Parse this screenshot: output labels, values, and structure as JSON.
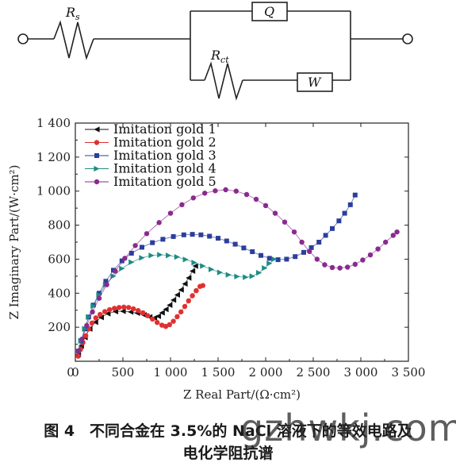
{
  "circuit": {
    "rs_label": "R",
    "rs_sub": "s",
    "q_label": "Q",
    "rct_label": "R",
    "rct_sub": "ct",
    "w_label": "W"
  },
  "chart_data": {
    "type": "scatter",
    "xlabel": "Z Real Part/(Ω·cm²)",
    "ylabel": "Z Imaginary Part/(W·cm²)",
    "xlim": [
      0,
      3500
    ],
    "ylim": [
      0,
      1400
    ],
    "xticks": [
      0,
      500,
      1000,
      1500,
      2000,
      2500,
      3000,
      3500
    ],
    "xtick_labels": [
      "0",
      "500",
      "1 000",
      "1 500",
      "2 000",
      "2 500",
      "3 000",
      "3 500"
    ],
    "yticks": [
      200,
      400,
      600,
      800,
      1000,
      1200,
      1400
    ],
    "ytick_labels": [
      "200",
      "400",
      "600",
      "800",
      "1 000",
      "1 200",
      "1 400"
    ],
    "x_origin_label": "0",
    "grid": false,
    "legend_position": "top-left",
    "series": [
      {
        "name": "Imitation gold 1",
        "marker": "triangle-left",
        "color": "#111111",
        "points": [
          [
            30,
            40
          ],
          [
            60,
            90
          ],
          [
            100,
            140
          ],
          [
            150,
            190
          ],
          [
            210,
            230
          ],
          [
            270,
            258
          ],
          [
            340,
            280
          ],
          [
            420,
            292
          ],
          [
            500,
            294
          ],
          [
            580,
            290
          ],
          [
            650,
            283
          ],
          [
            720,
            272
          ],
          [
            780,
            260
          ],
          [
            830,
            255
          ],
          [
            870,
            265
          ],
          [
            910,
            285
          ],
          [
            950,
            305
          ],
          [
            990,
            330
          ],
          [
            1030,
            360
          ],
          [
            1070,
            390
          ],
          [
            1110,
            420
          ],
          [
            1150,
            455
          ],
          [
            1190,
            490
          ],
          [
            1230,
            530
          ],
          [
            1260,
            560
          ]
        ]
      },
      {
        "name": "Imitation gold 2",
        "marker": "circle",
        "color": "#e03030",
        "points": [
          [
            30,
            30
          ],
          [
            55,
            70
          ],
          [
            80,
            110
          ],
          [
            110,
            150
          ],
          [
            140,
            190
          ],
          [
            175,
            225
          ],
          [
            215,
            255
          ],
          [
            260,
            275
          ],
          [
            310,
            292
          ],
          [
            360,
            303
          ],
          [
            410,
            311
          ],
          [
            460,
            316
          ],
          [
            510,
            318
          ],
          [
            560,
            316
          ],
          [
            610,
            308
          ],
          [
            660,
            298
          ],
          [
            710,
            285
          ],
          [
            760,
            268
          ],
          [
            810,
            248
          ],
          [
            860,
            228
          ],
          [
            910,
            212
          ],
          [
            950,
            205
          ],
          [
            990,
            215
          ],
          [
            1030,
            235
          ],
          [
            1070,
            262
          ],
          [
            1110,
            290
          ],
          [
            1150,
            322
          ],
          [
            1190,
            355
          ],
          [
            1230,
            385
          ],
          [
            1270,
            415
          ],
          [
            1310,
            440
          ],
          [
            1340,
            445
          ]
        ]
      },
      {
        "name": "Imitation gold 3",
        "marker": "square",
        "color": "#2c3e9c",
        "points": [
          [
            30,
            60
          ],
          [
            60,
            120
          ],
          [
            100,
            190
          ],
          [
            140,
            260
          ],
          [
            190,
            330
          ],
          [
            250,
            400
          ],
          [
            320,
            470
          ],
          [
            400,
            535
          ],
          [
            490,
            590
          ],
          [
            590,
            635
          ],
          [
            700,
            670
          ],
          [
            810,
            697
          ],
          [
            920,
            717
          ],
          [
            1030,
            733
          ],
          [
            1140,
            743
          ],
          [
            1230,
            746
          ],
          [
            1320,
            743
          ],
          [
            1410,
            735
          ],
          [
            1500,
            723
          ],
          [
            1590,
            707
          ],
          [
            1680,
            688
          ],
          [
            1770,
            666
          ],
          [
            1860,
            644
          ],
          [
            1950,
            622
          ],
          [
            2040,
            605
          ],
          [
            2130,
            597
          ],
          [
            2220,
            600
          ],
          [
            2310,
            615
          ],
          [
            2400,
            640
          ],
          [
            2480,
            668
          ],
          [
            2560,
            700
          ],
          [
            2630,
            740
          ],
          [
            2700,
            780
          ],
          [
            2770,
            825
          ],
          [
            2830,
            870
          ],
          [
            2890,
            920
          ],
          [
            2940,
            977
          ]
        ]
      },
      {
        "name": "Imitation gold 4",
        "marker": "triangle-right",
        "color": "#1e8c82",
        "points": [
          [
            30,
            60
          ],
          [
            60,
            120
          ],
          [
            100,
            190
          ],
          [
            140,
            260
          ],
          [
            190,
            325
          ],
          [
            250,
            390
          ],
          [
            320,
            450
          ],
          [
            400,
            500
          ],
          [
            490,
            545
          ],
          [
            590,
            582
          ],
          [
            700,
            608
          ],
          [
            800,
            622
          ],
          [
            890,
            626
          ],
          [
            980,
            622
          ],
          [
            1070,
            613
          ],
          [
            1160,
            598
          ],
          [
            1250,
            580
          ],
          [
            1340,
            560
          ],
          [
            1430,
            540
          ],
          [
            1520,
            522
          ],
          [
            1610,
            508
          ],
          [
            1700,
            498
          ],
          [
            1790,
            494
          ],
          [
            1860,
            500
          ],
          [
            1930,
            520
          ],
          [
            1990,
            548
          ],
          [
            2040,
            575
          ],
          [
            2090,
            600
          ]
        ]
      },
      {
        "name": "Imitation gold 5",
        "marker": "circle",
        "color": "#8a2a8e",
        "points": [
          [
            30,
            60
          ],
          [
            70,
            130
          ],
          [
            120,
            210
          ],
          [
            180,
            290
          ],
          [
            250,
            370
          ],
          [
            330,
            450
          ],
          [
            420,
            530
          ],
          [
            520,
            605
          ],
          [
            630,
            680
          ],
          [
            750,
            750
          ],
          [
            880,
            815
          ],
          [
            1000,
            870
          ],
          [
            1120,
            920
          ],
          [
            1240,
            960
          ],
          [
            1360,
            988
          ],
          [
            1470,
            1002
          ],
          [
            1580,
            1008
          ],
          [
            1690,
            1000
          ],
          [
            1800,
            980
          ],
          [
            1900,
            952
          ],
          [
            2000,
            915
          ],
          [
            2100,
            870
          ],
          [
            2200,
            818
          ],
          [
            2300,
            760
          ],
          [
            2380,
            700
          ],
          [
            2460,
            645
          ],
          [
            2540,
            600
          ],
          [
            2620,
            567
          ],
          [
            2700,
            551
          ],
          [
            2780,
            548
          ],
          [
            2860,
            553
          ],
          [
            2940,
            570
          ],
          [
            3020,
            595
          ],
          [
            3100,
            625
          ],
          [
            3180,
            660
          ],
          [
            3260,
            700
          ],
          [
            3340,
            740
          ],
          [
            3380,
            760
          ]
        ]
      }
    ]
  },
  "caption": {
    "line1": "图 4　不同合金在 3.5%的 NaCl 溶液下的等效电路及",
    "line2": "电化学阻抗谱"
  },
  "watermark": "gzhwkj.com"
}
